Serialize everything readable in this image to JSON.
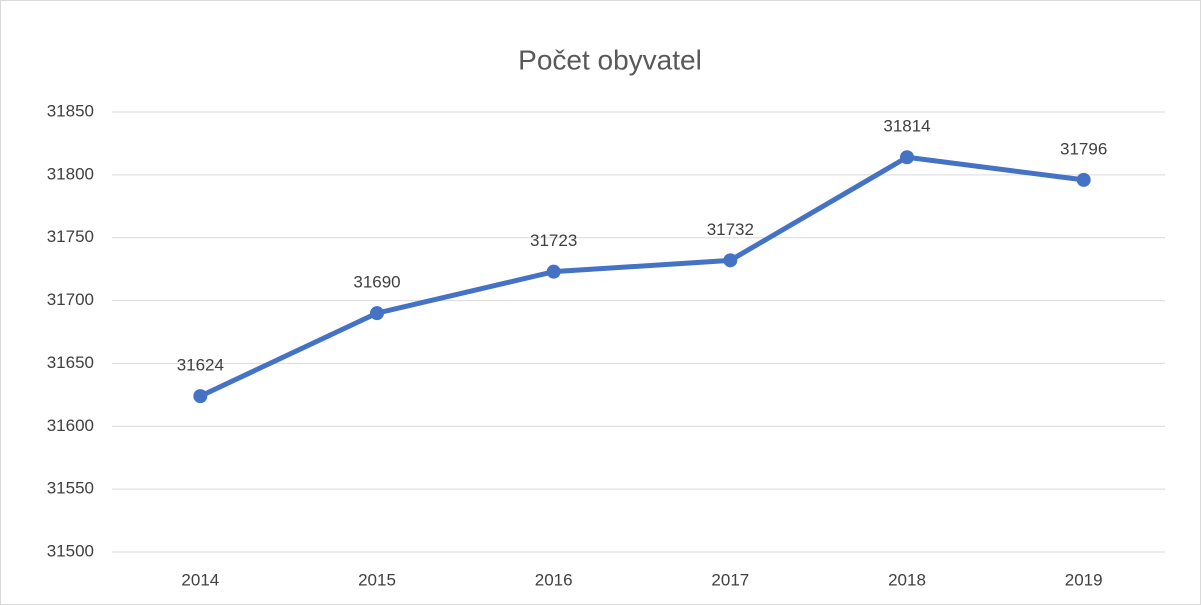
{
  "chart_data": {
    "type": "line",
    "title": "Počet obyvatel",
    "categories": [
      "2014",
      "2015",
      "2016",
      "2017",
      "2018",
      "2019"
    ],
    "values": [
      31624,
      31690,
      31723,
      31732,
      31814,
      31796
    ],
    "color": "#4472c4",
    "ylim": [
      31500,
      31850
    ],
    "yticks": [
      31500,
      31550,
      31600,
      31650,
      31700,
      31750,
      31800,
      31850
    ],
    "grid": true
  }
}
